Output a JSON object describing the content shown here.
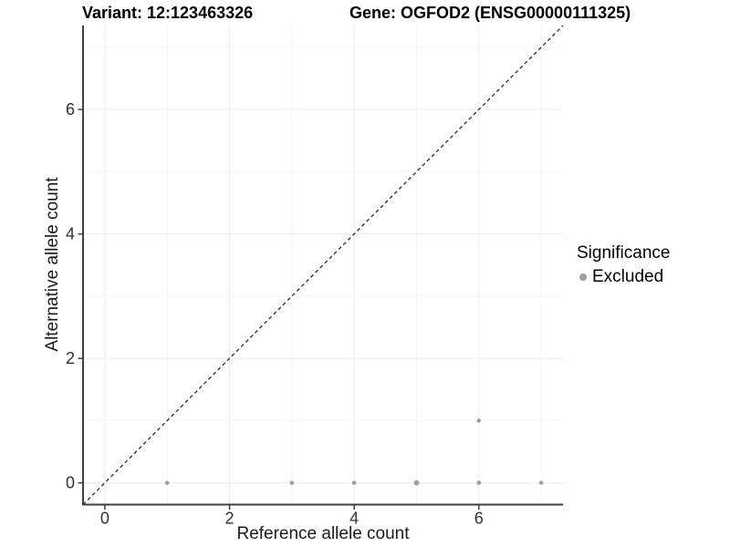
{
  "chart_data": {
    "type": "scatter",
    "title_left": "Variant: 12:123463326",
    "title_right": "Gene: OGFOD2 (ENSG00000111325)",
    "xlabel": "Reference allele count",
    "ylabel": "Alternative allele count",
    "xlim": [
      -0.35,
      7.35
    ],
    "ylim": [
      -0.35,
      7.35
    ],
    "x_ticks": [
      0,
      2,
      4,
      6
    ],
    "y_ticks": [
      0,
      2,
      4,
      6
    ],
    "minor_grid": [
      1,
      3,
      5,
      7
    ],
    "grid": true,
    "diagonal": {
      "type": "identity",
      "style": "dashed",
      "from": [
        -0.35,
        -0.35
      ],
      "to": [
        7.35,
        7.35
      ]
    },
    "series": [
      {
        "name": "Excluded",
        "color": "#9e9e9e",
        "points": [
          {
            "x": 1,
            "y": 0,
            "r": 2.3
          },
          {
            "x": 3,
            "y": 0,
            "r": 2.3
          },
          {
            "x": 4,
            "y": 0,
            "r": 2.3
          },
          {
            "x": 5,
            "y": 0,
            "r": 2.9
          },
          {
            "x": 6,
            "y": 0,
            "r": 2.4
          },
          {
            "x": 7,
            "y": 0,
            "r": 2.2
          },
          {
            "x": 6,
            "y": 1,
            "r": 2.25
          }
        ]
      }
    ],
    "legend": {
      "title": "Significance",
      "position": "right",
      "items": [
        {
          "label": "Excluded",
          "color": "#9e9e9e"
        }
      ]
    },
    "colors": {
      "background": "#ffffff",
      "axis": "#3f3f3f",
      "tick_label": "#333333",
      "grid_major": "#ececec",
      "grid_minor": "#f4f4f4",
      "diagonal": "#1a1a1a",
      "point": "#9e9e9e",
      "title": "#000000"
    }
  }
}
